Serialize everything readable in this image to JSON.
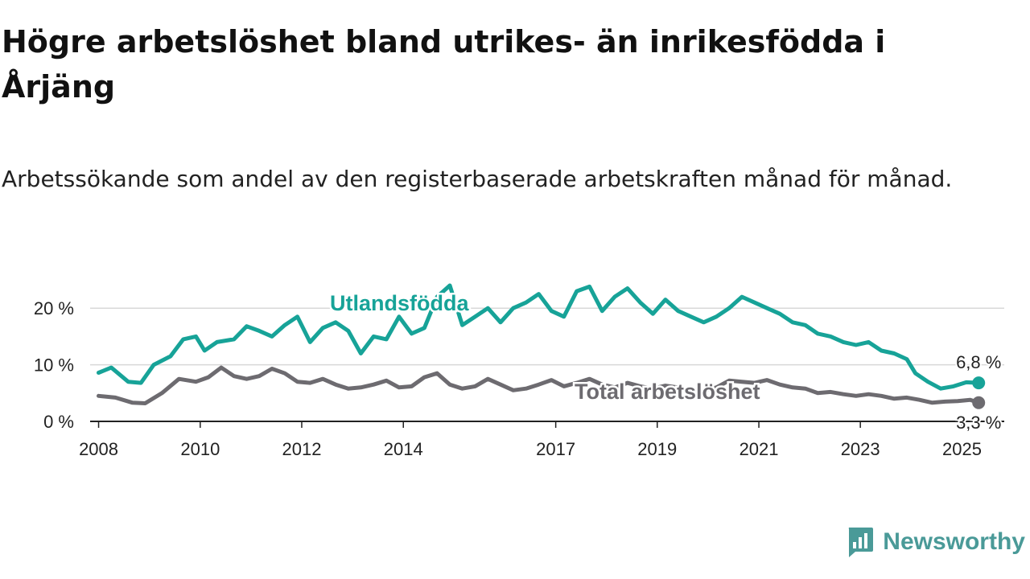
{
  "title": "Högre arbetslöshet bland utrikes- än inrikesfödda i Årjäng",
  "subtitle": "Arbetssökande som andel av den registerbaserade arbetskraften månad för månad.",
  "brand": {
    "name": "Newsworthy",
    "icon": "newsworthy-logo-icon",
    "color": "#4a9a98"
  },
  "chart_data": {
    "type": "line",
    "x_type": "date",
    "ylim": [
      0,
      25
    ],
    "yticks": [
      0,
      10,
      20
    ],
    "ytick_labels": [
      "0 %",
      "10 %",
      "20 %"
    ],
    "xticks": [
      "2008-01",
      "2010-01",
      "2012-01",
      "2014-01",
      "2017-01",
      "2019-01",
      "2021-01",
      "2023-01",
      "2025-01"
    ],
    "xtick_labels": [
      "2008",
      "2010",
      "2012",
      "2014",
      "2017",
      "2019",
      "2021",
      "2023",
      "2025"
    ],
    "grid": true,
    "series": [
      {
        "name": "Utlandsfödda",
        "color": "#17a398",
        "end_label": "6,8 %",
        "points": [
          [
            "2008-01",
            8.6
          ],
          [
            "2008-04",
            9.5
          ],
          [
            "2008-08",
            7.0
          ],
          [
            "2008-11",
            6.8
          ],
          [
            "2009-02",
            10.0
          ],
          [
            "2009-06",
            11.5
          ],
          [
            "2009-09",
            14.5
          ],
          [
            "2009-12",
            15.0
          ],
          [
            "2010-02",
            12.5
          ],
          [
            "2010-05",
            14.0
          ],
          [
            "2010-09",
            14.5
          ],
          [
            "2010-12",
            16.8
          ],
          [
            "2011-03",
            16.0
          ],
          [
            "2011-06",
            15.0
          ],
          [
            "2011-09",
            17.0
          ],
          [
            "2011-12",
            18.5
          ],
          [
            "2012-03",
            14.0
          ],
          [
            "2012-06",
            16.5
          ],
          [
            "2012-09",
            17.5
          ],
          [
            "2012-12",
            16.0
          ],
          [
            "2013-03",
            12.0
          ],
          [
            "2013-06",
            15.0
          ],
          [
            "2013-09",
            14.5
          ],
          [
            "2013-12",
            18.5
          ],
          [
            "2014-03",
            15.5
          ],
          [
            "2014-06",
            16.5
          ],
          [
            "2014-09",
            22.0
          ],
          [
            "2014-12",
            24.0
          ],
          [
            "2015-03",
            17.0
          ],
          [
            "2015-06",
            18.5
          ],
          [
            "2015-09",
            20.0
          ],
          [
            "2015-12",
            17.5
          ],
          [
            "2016-03",
            20.0
          ],
          [
            "2016-06",
            21.0
          ],
          [
            "2016-09",
            22.5
          ],
          [
            "2016-12",
            19.5
          ],
          [
            "2017-03",
            18.5
          ],
          [
            "2017-06",
            23.0
          ],
          [
            "2017-09",
            23.8
          ],
          [
            "2017-12",
            19.5
          ],
          [
            "2018-03",
            22.0
          ],
          [
            "2018-06",
            23.5
          ],
          [
            "2018-09",
            21.0
          ],
          [
            "2018-12",
            19.0
          ],
          [
            "2019-03",
            21.5
          ],
          [
            "2019-06",
            19.5
          ],
          [
            "2019-09",
            18.5
          ],
          [
            "2019-12",
            17.5
          ],
          [
            "2020-03",
            18.5
          ],
          [
            "2020-06",
            20.0
          ],
          [
            "2020-09",
            22.0
          ],
          [
            "2020-12",
            21.0
          ],
          [
            "2021-03",
            20.0
          ],
          [
            "2021-06",
            19.0
          ],
          [
            "2021-09",
            17.5
          ],
          [
            "2021-12",
            17.0
          ],
          [
            "2022-03",
            15.5
          ],
          [
            "2022-06",
            15.0
          ],
          [
            "2022-09",
            14.0
          ],
          [
            "2022-12",
            13.5
          ],
          [
            "2023-03",
            14.0
          ],
          [
            "2023-06",
            12.5
          ],
          [
            "2023-09",
            12.0
          ],
          [
            "2023-12",
            11.0
          ],
          [
            "2024-02",
            8.5
          ],
          [
            "2024-05",
            7.0
          ],
          [
            "2024-08",
            5.8
          ],
          [
            "2024-11",
            6.2
          ],
          [
            "2025-02",
            6.9
          ],
          [
            "2025-05",
            6.8
          ]
        ]
      },
      {
        "name": "Total arbetslöshet",
        "color": "#6d6b70",
        "end_label": "3,3 %",
        "points": [
          [
            "2008-01",
            4.5
          ],
          [
            "2008-05",
            4.2
          ],
          [
            "2008-09",
            3.3
          ],
          [
            "2008-12",
            3.2
          ],
          [
            "2009-04",
            5.0
          ],
          [
            "2009-08",
            7.5
          ],
          [
            "2009-12",
            7.0
          ],
          [
            "2010-03",
            7.8
          ],
          [
            "2010-06",
            9.5
          ],
          [
            "2010-09",
            8.0
          ],
          [
            "2010-12",
            7.5
          ],
          [
            "2011-03",
            8.0
          ],
          [
            "2011-06",
            9.3
          ],
          [
            "2011-09",
            8.5
          ],
          [
            "2011-12",
            7.0
          ],
          [
            "2012-03",
            6.8
          ],
          [
            "2012-06",
            7.5
          ],
          [
            "2012-09",
            6.5
          ],
          [
            "2012-12",
            5.8
          ],
          [
            "2013-03",
            6.0
          ],
          [
            "2013-06",
            6.5
          ],
          [
            "2013-09",
            7.2
          ],
          [
            "2013-12",
            6.0
          ],
          [
            "2014-03",
            6.2
          ],
          [
            "2014-06",
            7.8
          ],
          [
            "2014-09",
            8.5
          ],
          [
            "2014-12",
            6.5
          ],
          [
            "2015-03",
            5.8
          ],
          [
            "2015-06",
            6.2
          ],
          [
            "2015-09",
            7.5
          ],
          [
            "2015-12",
            6.5
          ],
          [
            "2016-03",
            5.5
          ],
          [
            "2016-06",
            5.8
          ],
          [
            "2016-09",
            6.5
          ],
          [
            "2016-12",
            7.3
          ],
          [
            "2017-03",
            6.2
          ],
          [
            "2017-06",
            6.8
          ],
          [
            "2017-09",
            7.5
          ],
          [
            "2017-12",
            6.5
          ],
          [
            "2018-03",
            6.0
          ],
          [
            "2018-06",
            6.8
          ],
          [
            "2018-09",
            6.2
          ],
          [
            "2018-12",
            5.8
          ],
          [
            "2019-03",
            6.3
          ],
          [
            "2019-06",
            6.0
          ],
          [
            "2019-09",
            5.6
          ],
          [
            "2019-12",
            5.4
          ],
          [
            "2020-03",
            6.0
          ],
          [
            "2020-06",
            7.2
          ],
          [
            "2020-09",
            7.0
          ],
          [
            "2020-12",
            6.8
          ],
          [
            "2021-03",
            7.3
          ],
          [
            "2021-06",
            6.5
          ],
          [
            "2021-09",
            6.0
          ],
          [
            "2021-12",
            5.8
          ],
          [
            "2022-03",
            5.0
          ],
          [
            "2022-06",
            5.2
          ],
          [
            "2022-09",
            4.8
          ],
          [
            "2022-12",
            4.5
          ],
          [
            "2023-03",
            4.8
          ],
          [
            "2023-06",
            4.5
          ],
          [
            "2023-09",
            4.0
          ],
          [
            "2023-12",
            4.2
          ],
          [
            "2024-03",
            3.8
          ],
          [
            "2024-06",
            3.3
          ],
          [
            "2024-09",
            3.5
          ],
          [
            "2024-12",
            3.6
          ],
          [
            "2025-03",
            3.8
          ],
          [
            "2025-05",
            3.3
          ]
        ]
      }
    ]
  }
}
